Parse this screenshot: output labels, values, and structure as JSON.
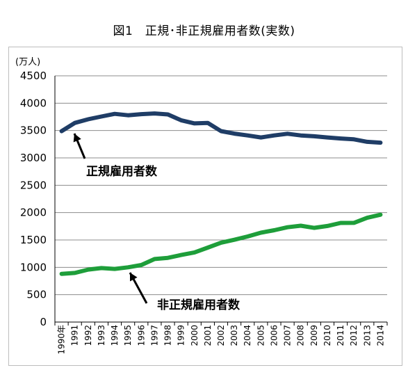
{
  "chart_data": {
    "type": "line",
    "title": "図1　正規･非正規雇用者数(実数)",
    "unit_label": "(万人)",
    "x_suffix": "年",
    "categories": [
      "1990",
      "1991",
      "1992",
      "1993",
      "1994",
      "1995",
      "1996",
      "1997",
      "1998",
      "1999",
      "2000",
      "2001",
      "2002",
      "2003",
      "2004",
      "2005",
      "2006",
      "2007",
      "2008",
      "2009",
      "2010",
      "2011",
      "2012",
      "2013",
      "2014"
    ],
    "ylim": [
      0,
      4500
    ],
    "yticks": [
      0,
      500,
      1000,
      1500,
      2000,
      2500,
      3000,
      3500,
      4000,
      4500
    ],
    "grid": true,
    "series": [
      {
        "name": "正規雇用者数",
        "color": "#1f3d66",
        "values": [
          3488,
          3639,
          3705,
          3756,
          3805,
          3779,
          3800,
          3812,
          3794,
          3688,
          3630,
          3640,
          3489,
          3444,
          3410,
          3374,
          3411,
          3441,
          3410,
          3395,
          3374,
          3355,
          3340,
          3294,
          3278
        ]
      },
      {
        "name": "非正規雇用者数",
        "color": "#1e9e3a",
        "values": [
          881,
          897,
          958,
          986,
          971,
          1001,
          1043,
          1152,
          1173,
          1225,
          1273,
          1360,
          1451,
          1504,
          1564,
          1633,
          1678,
          1732,
          1760,
          1721,
          1756,
          1812,
          1813,
          1906,
          1962
        ]
      }
    ]
  }
}
